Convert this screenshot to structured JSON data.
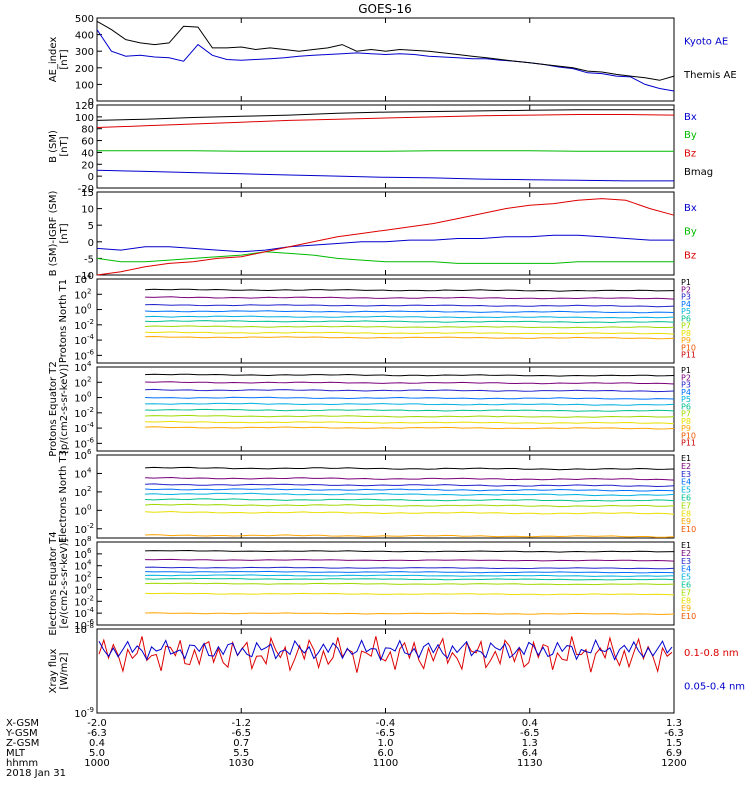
{
  "title": "GOES-16",
  "time_axis": {
    "ticks": [
      "1000",
      "1030",
      "1100",
      "1130",
      "1200"
    ],
    "ephemeris": [
      {
        "label": "X-GSM",
        "values": [
          "-2.0",
          "-1.2",
          "-0.4",
          "0.4",
          "1.3"
        ]
      },
      {
        "label": "Y-GSM",
        "values": [
          "-6.3",
          "-6.5",
          "-6.5",
          "-6.5",
          "-6.3"
        ]
      },
      {
        "label": "Z-GSM",
        "values": [
          "0.4",
          "0.7",
          "1.0",
          "1.3",
          "1.5"
        ]
      },
      {
        "label": "MLT",
        "values": [
          "5.0",
          "5.5",
          "6.0",
          "6.4",
          "6.9"
        ]
      },
      {
        "label": "hhmm",
        "values": [
          "1000",
          "1030",
          "1100",
          "1130",
          "1200"
        ]
      }
    ],
    "date": "2018 Jan 31"
  },
  "colors": {
    "black": "#000000",
    "blue": "#0000cc",
    "green": "#00bb00",
    "red": "#dd0000",
    "P1": "#000000",
    "P2": "#7a007a",
    "P3": "#2222cc",
    "P4": "#0070ff",
    "P5": "#00b0e0",
    "P6": "#00c090",
    "P7": "#a0d800",
    "P8": "#e8e000",
    "P9": "#ffa500",
    "P10": "#ee5500",
    "P11": "#cc0000"
  },
  "chart_data": [
    {
      "type": "line",
      "ylabel": "AE_index [nT]",
      "ylim": [
        0,
        500
      ],
      "yticks": [
        "0",
        "100",
        "200",
        "300",
        "400",
        "500"
      ],
      "x": [
        0,
        3,
        6,
        9,
        12,
        15,
        18,
        21,
        24,
        27,
        30,
        33,
        36,
        39,
        42,
        45,
        48,
        51,
        54,
        57,
        60,
        63,
        66,
        69,
        72,
        75,
        78,
        81,
        84,
        87,
        90,
        93,
        96,
        99,
        102,
        105,
        108,
        111,
        114,
        117,
        120
      ],
      "series": [
        {
          "name": "Kyoto AE",
          "color": "blue",
          "values": [
            430,
            300,
            270,
            275,
            265,
            260,
            240,
            340,
            275,
            250,
            245,
            250,
            255,
            260,
            270,
            275,
            280,
            285,
            290,
            285,
            280,
            285,
            280,
            270,
            265,
            260,
            255,
            255,
            245,
            240,
            230,
            220,
            205,
            195,
            170,
            165,
            150,
            145,
            100,
            75,
            60
          ]
        },
        {
          "name": "Themis AE",
          "color": "black",
          "values": [
            480,
            430,
            370,
            350,
            340,
            350,
            450,
            445,
            320,
            320,
            325,
            310,
            320,
            310,
            300,
            310,
            320,
            340,
            300,
            310,
            300,
            310,
            305,
            300,
            290,
            280,
            270,
            260,
            250,
            240,
            230,
            220,
            210,
            200,
            180,
            175,
            160,
            150,
            140,
            125,
            150
          ]
        }
      ]
    },
    {
      "type": "line",
      "ylabel": "B (SM) [nT]",
      "ylim": [
        -20,
        120
      ],
      "yticks": [
        "-20",
        "0",
        "20",
        "40",
        "60",
        "80",
        "100",
        "120"
      ],
      "x": [
        0,
        10,
        20,
        30,
        40,
        50,
        60,
        70,
        80,
        90,
        100,
        110,
        120
      ],
      "series": [
        {
          "name": "Bx",
          "color": "blue",
          "values": [
            10,
            8,
            6,
            4,
            2,
            0,
            -2,
            -3,
            -5,
            -6,
            -7,
            -8,
            -8
          ]
        },
        {
          "name": "By",
          "color": "green",
          "values": [
            43,
            43,
            43,
            42,
            42,
            42,
            42,
            43,
            43,
            43,
            42,
            42,
            42
          ]
        },
        {
          "name": "Bz",
          "color": "red",
          "values": [
            82,
            85,
            88,
            91,
            94,
            96,
            98,
            100,
            102,
            103,
            104,
            104,
            103
          ]
        },
        {
          "name": "Bmag",
          "color": "black",
          "values": [
            94,
            96,
            99,
            101,
            103,
            106,
            108,
            109,
            110,
            111,
            112,
            112,
            112
          ]
        }
      ]
    },
    {
      "type": "line",
      "ylabel": "B (SM)-IGRF (SM) [nT]",
      "ylim": [
        -10,
        15
      ],
      "yticks": [
        "-10",
        "-5",
        "0",
        "5",
        "10",
        "15"
      ],
      "x": [
        0,
        5,
        10,
        15,
        20,
        25,
        30,
        35,
        40,
        45,
        50,
        55,
        60,
        65,
        70,
        75,
        80,
        85,
        90,
        95,
        100,
        105,
        110,
        115,
        120
      ],
      "series": [
        {
          "name": "Bx",
          "color": "blue",
          "values": [
            -2,
            -2.5,
            -1.5,
            -1.5,
            -2,
            -2.5,
            -3,
            -2.5,
            -1.5,
            -1,
            -0.5,
            0,
            0,
            0.5,
            0.5,
            1,
            1,
            1.5,
            1.5,
            2,
            2,
            1.5,
            1,
            0.5,
            0.5
          ]
        },
        {
          "name": "By",
          "color": "green",
          "values": [
            -5,
            -6,
            -6,
            -5.5,
            -5,
            -4.5,
            -4,
            -3,
            -3.5,
            -4,
            -5,
            -5.5,
            -6,
            -6,
            -6,
            -6.5,
            -6.5,
            -6.5,
            -6.5,
            -6.5,
            -6,
            -6,
            -6,
            -6,
            -6
          ]
        },
        {
          "name": "Bz",
          "color": "red",
          "values": [
            -10,
            -9,
            -7.5,
            -6.5,
            -6,
            -5,
            -4.5,
            -3,
            -1.5,
            0,
            1.5,
            2.5,
            3.5,
            4.5,
            5.5,
            7,
            8.5,
            10,
            11,
            11.5,
            12.5,
            13,
            12.5,
            10,
            8
          ]
        }
      ]
    },
    {
      "type": "line",
      "ylabel": "Protons North T1",
      "yscale": "log",
      "ylim_exp": [
        -7,
        4
      ],
      "yticks": [
        "10^4",
        "10^2",
        "10^0",
        "10^-2",
        "10^-4",
        "10^-6"
      ],
      "x_start": 10,
      "legend": [
        "P1",
        "P2",
        "P3",
        "P4",
        "P5",
        "P6",
        "P7",
        "P8",
        "P9",
        "P10",
        "P11"
      ],
      "levels_exp": [
        2.6,
        1.6,
        0.6,
        -0.2,
        -0.9,
        -1.5,
        -2.2,
        -3.0,
        -3.6,
        -7.5,
        -8.0
      ]
    },
    {
      "type": "line",
      "ylabel": "Protons Equator T2 [p/(cm2-s-sr-keV)]",
      "yscale": "log",
      "ylim_exp": [
        -7,
        4
      ],
      "yticks": [
        "10^4",
        "10^2",
        "10^0",
        "10^-2",
        "10^-4",
        "10^-6"
      ],
      "x_start": 10,
      "legend": [
        "P1",
        "P2",
        "P3",
        "P4",
        "P5",
        "P6",
        "P7",
        "P8",
        "P9",
        "P10",
        "P11"
      ],
      "levels_exp": [
        3.0,
        2.0,
        1.0,
        0.0,
        -0.8,
        -1.6,
        -2.4,
        -3.2,
        -3.9,
        -7.5,
        -8.0
      ]
    },
    {
      "type": "line",
      "ylabel": "Electrons North T3",
      "yscale": "log",
      "ylim_exp": [
        -3,
        6
      ],
      "yticks": [
        "10^6",
        "10^4",
        "10^2",
        "10^0",
        "10^-2"
      ],
      "x_start": 10,
      "legend": [
        "E1",
        "E2",
        "E3",
        "E4",
        "E5",
        "E6",
        "E7",
        "E8",
        "E9",
        "E10"
      ],
      "levels_exp": [
        4.6,
        3.5,
        2.8,
        2.3,
        1.8,
        1.2,
        0.6,
        -0.2,
        -2.7,
        -3.5
      ]
    },
    {
      "type": "line",
      "ylabel": "Electrons Equator T4 [e/(cm2-s-sr-keV)]",
      "yscale": "log",
      "ylim_exp": [
        -6,
        8
      ],
      "yticks": [
        "10^8",
        "10^6",
        "10^4",
        "10^2",
        "10^0",
        "10^-2",
        "10^-4",
        "10^-6"
      ],
      "x_start": 10,
      "legend": [
        "E1",
        "E2",
        "E3",
        "E4",
        "E5",
        "E6",
        "E7",
        "E8",
        "E9",
        "E10"
      ],
      "levels_exp": [
        6.5,
        5.0,
        3.7,
        3.0,
        2.4,
        1.8,
        1.0,
        -0.7,
        -4.0,
        -6.5
      ]
    },
    {
      "type": "line",
      "ylabel": "Xray flux [W/m2]",
      "yscale": "log",
      "ylim_exp": [
        -9,
        -8
      ],
      "yticks": [
        "10^-8",
        "10^-9"
      ],
      "series": [
        {
          "name": "0.1-0.8 nm",
          "color": "red",
          "level_exp": -8.3
        },
        {
          "name": "0.05-0.4 nm",
          "color": "blue",
          "level_exp": -8.25
        }
      ]
    }
  ],
  "right_labels": {
    "panel1": [
      "Kyoto AE",
      "Themis AE"
    ],
    "panel2": [
      "Bx",
      "By",
      "Bz",
      "Bmag"
    ],
    "panel3": [
      "Bx",
      "By",
      "Bz"
    ],
    "xray": [
      "0.1-0.8 nm",
      "0.05-0.4 nm"
    ]
  }
}
